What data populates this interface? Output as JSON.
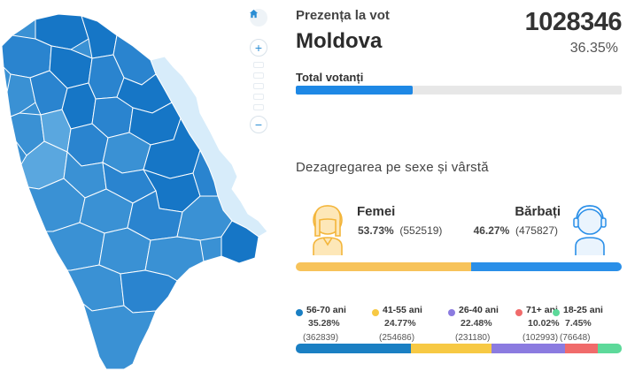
{
  "header": {
    "title": "Prezența la vot",
    "region": "Moldova",
    "total": "1028346",
    "percent": "36.35%"
  },
  "total_votanti": {
    "label": "Total votanți",
    "fill_fraction": 0.36,
    "fill_color": "#1e88e5"
  },
  "map_controls": {
    "home_icon": "home-icon",
    "zoom_in": "+",
    "zoom_out": "−",
    "zoom_levels": 5
  },
  "gender": {
    "section_title": "Dezagregarea pe sexe și vârstă",
    "female": {
      "label": "Femei",
      "percent": "53.73%",
      "count": "(552519)",
      "color": "#f7c35a",
      "share": 0.5373
    },
    "male": {
      "label": "Bărbați",
      "percent": "46.27%",
      "count": "(475827)",
      "color": "#2a8fe8",
      "share": 0.4627
    }
  },
  "ages": [
    {
      "label": "56-70 ani",
      "percent": "35.28%",
      "count": "(362839)",
      "color": "#1a7fc3",
      "share": 0.3528
    },
    {
      "label": "41-55 ani",
      "percent": "24.77%",
      "count": "(254686)",
      "color": "#f7c944",
      "share": 0.2477
    },
    {
      "label": "26-40 ani",
      "percent": "22.48%",
      "count": "(231180)",
      "color": "#8b7be0",
      "share": 0.2248
    },
    {
      "label": "71+ ani",
      "percent": "10.02%",
      "count": "(102993)",
      "color": "#f06b6b",
      "share": 0.1002
    },
    {
      "label": "18-25 ani",
      "percent": "7.45%",
      "count": "(76648)",
      "color": "#5dd99a",
      "share": 0.0745
    }
  ],
  "colors": {
    "map_dark": "#1676c6",
    "map_mid": "#3a91d4",
    "map_light": "#5aa7df",
    "map_transnistria": "#d7ecfa"
  }
}
